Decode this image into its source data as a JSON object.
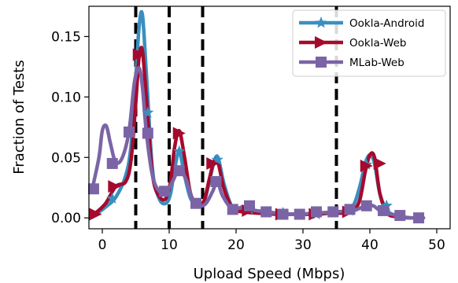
{
  "chart_data": {
    "type": "line",
    "xlabel": "Upload Speed (Mbps)",
    "ylabel": "Fraction of Tests",
    "xlim": [
      -2,
      52
    ],
    "ylim": [
      -0.009,
      0.175
    ],
    "xticks": [
      0,
      10,
      20,
      30,
      40,
      50
    ],
    "yticks": [
      0.0,
      0.05,
      0.1,
      0.15
    ],
    "xtick_labels": [
      "0",
      "10",
      "20",
      "30",
      "40",
      "50"
    ],
    "ytick_labels": [
      "0.00",
      "0.05",
      "0.10",
      "0.15"
    ],
    "grid": false,
    "legend_position": "top-right",
    "vlines": [
      5,
      10,
      15,
      35
    ],
    "series": [
      {
        "name": "Ookla-Android",
        "color": "#3A8FC0",
        "marker": "star",
        "x": [
          -1.2,
          0.5,
          2,
          3.5,
          4.3,
          5,
          5.5,
          6,
          6.6,
          7.5,
          8.5,
          9.5,
          10.2,
          10.8,
          11.5,
          12.3,
          13.2,
          14.3,
          15.2,
          16,
          16.7,
          17.3,
          18.2,
          19.5,
          21,
          23,
          26,
          29,
          32,
          34,
          36,
          37.5,
          38.5,
          39.3,
          40,
          40.7,
          41.5,
          42.6,
          44,
          46,
          48
        ],
        "y": [
          0.002,
          0.009,
          0.017,
          0.035,
          0.06,
          0.115,
          0.158,
          0.168,
          0.118,
          0.04,
          0.016,
          0.012,
          0.02,
          0.04,
          0.055,
          0.035,
          0.016,
          0.01,
          0.013,
          0.03,
          0.046,
          0.05,
          0.028,
          0.008,
          0.007,
          0.006,
          0.004,
          0.003,
          0.003,
          0.004,
          0.005,
          0.01,
          0.026,
          0.045,
          0.052,
          0.045,
          0.02,
          0.006,
          0.002,
          0.0,
          0.0
        ],
        "marker_x": [
          1.5,
          6.8,
          11.5,
          17.2,
          22,
          27,
          32,
          37,
          39.5,
          42.5
        ],
        "marker_y": [
          0.016,
          0.087,
          0.055,
          0.048,
          0.007,
          0.004,
          0.003,
          0.006,
          0.044,
          0.01
        ]
      },
      {
        "name": "Ookla-Web",
        "color": "#A50A2D",
        "marker": "triangle-right",
        "x": [
          -1.2,
          0.5,
          2,
          3.5,
          4.3,
          5,
          5.5,
          6,
          6.6,
          7.5,
          8.5,
          9.5,
          10.2,
          10.8,
          11.5,
          12.3,
          13.2,
          14.3,
          15.2,
          16,
          16.7,
          17.3,
          18.2,
          19.5,
          21,
          23,
          26,
          29,
          32,
          34,
          36,
          37.5,
          38.5,
          39.3,
          40,
          40.7,
          41.5,
          42.6,
          44,
          46,
          48
        ],
        "y": [
          0.003,
          0.012,
          0.026,
          0.03,
          0.048,
          0.095,
          0.133,
          0.138,
          0.098,
          0.036,
          0.018,
          0.016,
          0.03,
          0.058,
          0.072,
          0.05,
          0.02,
          0.011,
          0.014,
          0.032,
          0.047,
          0.046,
          0.024,
          0.008,
          0.005,
          0.004,
          0.003,
          0.003,
          0.003,
          0.004,
          0.004,
          0.006,
          0.015,
          0.038,
          0.052,
          0.05,
          0.02,
          0.004,
          0.001,
          0.0,
          0.0
        ],
        "marker_x": [
          -1.0,
          1.8,
          5.5,
          11.5,
          16.5,
          21.8,
          26.8,
          31.8,
          36.8,
          39.5,
          41.5
        ],
        "marker_y": [
          0.003,
          0.026,
          0.135,
          0.07,
          0.045,
          0.006,
          0.003,
          0.003,
          0.005,
          0.043,
          0.045
        ]
      },
      {
        "name": "MLab-Web",
        "color": "#7B64A6",
        "marker": "square",
        "x": [
          -1.5,
          -0.5,
          0,
          0.6,
          1.2,
          2,
          3,
          4,
          4.8,
          5.5,
          6,
          6.6,
          7.5,
          8.5,
          9.5,
          10.5,
          11.5,
          12.5,
          13.5,
          14.5,
          15.5,
          16.5,
          17.2,
          18,
          19.5,
          21,
          23,
          26,
          29,
          32,
          35,
          37.5,
          38.5,
          39.5,
          40.5,
          41.5,
          42.6,
          44,
          46,
          48
        ],
        "y": [
          0.024,
          0.05,
          0.072,
          0.076,
          0.062,
          0.046,
          0.05,
          0.072,
          0.112,
          0.124,
          0.108,
          0.07,
          0.035,
          0.022,
          0.021,
          0.03,
          0.04,
          0.032,
          0.015,
          0.01,
          0.012,
          0.022,
          0.03,
          0.018,
          0.007,
          0.009,
          0.006,
          0.004,
          0.003,
          0.004,
          0.005,
          0.006,
          0.008,
          0.01,
          0.01,
          0.006,
          0.004,
          0.002,
          0.0,
          0.0
        ],
        "marker_x": [
          -1.3,
          1.5,
          4.0,
          6.8,
          9.3,
          11.5,
          14.0,
          17.0,
          19.5,
          22.0,
          24.5,
          27.0,
          29.5,
          32.0,
          34.5,
          37.0,
          39.5,
          42.0,
          44.5,
          47.3
        ],
        "marker_y": [
          0.024,
          0.045,
          0.071,
          0.07,
          0.022,
          0.039,
          0.012,
          0.03,
          0.007,
          0.01,
          0.005,
          0.003,
          0.003,
          0.005,
          0.005,
          0.007,
          0.01,
          0.006,
          0.002,
          0.0
        ]
      }
    ]
  }
}
